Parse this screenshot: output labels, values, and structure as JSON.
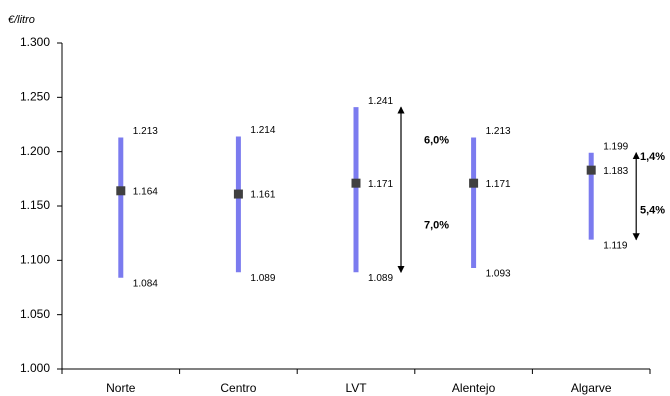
{
  "chart_data": {
    "type": "range",
    "y_label": "€/litro",
    "categories": [
      "Norte",
      "Centro",
      "LVT",
      "Alentejo",
      "Algarve"
    ],
    "max": [
      1.213,
      1.214,
      1.241,
      1.213,
      1.199
    ],
    "mean": [
      1.164,
      1.161,
      1.171,
      1.171,
      1.183
    ],
    "min": [
      1.084,
      1.089,
      1.089,
      1.093,
      1.119
    ],
    "range_color": "#7b7bef",
    "mean_color": "#404040",
    "ylim": [
      1,
      1.3
    ],
    "yticks": [
      {
        "value": 1,
        "label": "1.000"
      },
      {
        "value": 1.05,
        "label": "1.050"
      },
      {
        "value": 1.1,
        "label": "1.100"
      },
      {
        "value": 1.15,
        "label": "1.150"
      },
      {
        "value": 1.2,
        "label": "1.200"
      },
      {
        "value": 1.25,
        "label": "1.250"
      },
      {
        "value": 1.3,
        "label": "1.300"
      }
    ],
    "annotations": [
      "6,0%",
      "7,0%",
      "1,4%",
      "5,4%"
    ]
  }
}
